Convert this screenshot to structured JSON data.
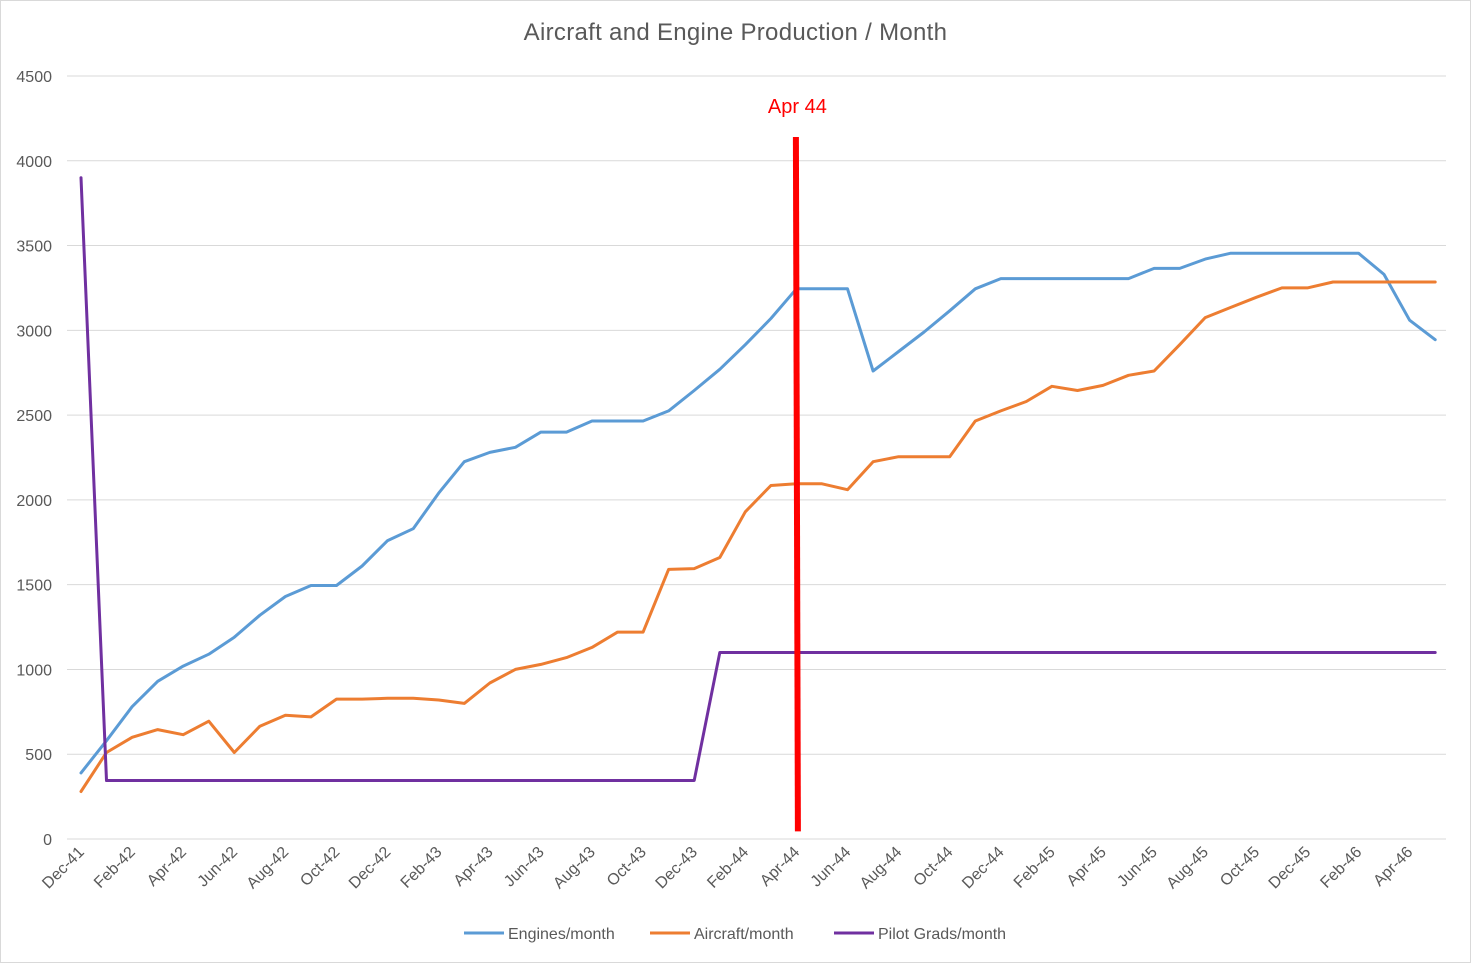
{
  "chart_data": {
    "type": "line",
    "title": "Aircraft and Engine Production / Month",
    "xlabel": "",
    "ylabel": "",
    "ylim": [
      0,
      4500
    ],
    "yticks": [
      0,
      500,
      1000,
      1500,
      2000,
      2500,
      3000,
      3500,
      4000,
      4500
    ],
    "grid": true,
    "legend_position": "bottom",
    "categories": [
      "Dec-41",
      "Jan-42",
      "Feb-42",
      "Mar-42",
      "Apr-42",
      "May-42",
      "Jun-42",
      "Jul-42",
      "Aug-42",
      "Sep-42",
      "Oct-42",
      "Nov-42",
      "Dec-42",
      "Jan-43",
      "Feb-43",
      "Mar-43",
      "Apr-43",
      "May-43",
      "Jun-43",
      "Jul-43",
      "Aug-43",
      "Sep-43",
      "Oct-43",
      "Nov-43",
      "Dec-43",
      "Jan-44",
      "Feb-44",
      "Mar-44",
      "Apr-44",
      "May-44",
      "Jun-44",
      "Jul-44",
      "Aug-44",
      "Sep-44",
      "Oct-44",
      "Nov-44",
      "Dec-44",
      "Jan-45",
      "Feb-45",
      "Mar-45",
      "Apr-45",
      "May-45",
      "Jun-45",
      "Jul-45",
      "Aug-45",
      "Sep-45",
      "Oct-45",
      "Nov-45",
      "Dec-45",
      "Jan-46",
      "Feb-46",
      "Mar-46",
      "Apr-46",
      "May-46"
    ],
    "xtick_labels": [
      "Dec-41",
      "Feb-42",
      "Apr-42",
      "Jun-42",
      "Aug-42",
      "Oct-42",
      "Dec-42",
      "Feb-43",
      "Apr-43",
      "Jun-43",
      "Aug-43",
      "Oct-43",
      "Dec-43",
      "Feb-44",
      "Apr-44",
      "Jun-44",
      "Aug-44",
      "Oct-44",
      "Dec-44",
      "Feb-45",
      "Apr-45",
      "Jun-45",
      "Aug-45",
      "Oct-45",
      "Dec-45",
      "Feb-46",
      "Apr-46"
    ],
    "series": [
      {
        "name": "Engines/month",
        "color": "#5b9bd5",
        "values": [
          390,
          580,
          780,
          930,
          1020,
          1090,
          1190,
          1320,
          1430,
          1495,
          1495,
          1610,
          1760,
          1830,
          2040,
          2225,
          2280,
          2310,
          2400,
          2400,
          2465,
          2465,
          2465,
          2525,
          2645,
          2770,
          2915,
          3070,
          3245,
          3245,
          3245,
          2760,
          2875,
          2990,
          3115,
          3245,
          3305,
          3305,
          3305,
          3305,
          3305,
          3305,
          3365,
          3365,
          3420,
          3455,
          3455,
          3455,
          3455,
          3455,
          3455,
          3330,
          3060,
          2945
        ]
      },
      {
        "name": "Aircraft/month",
        "color": "#ed7d31",
        "values": [
          280,
          510,
          600,
          645,
          615,
          695,
          510,
          665,
          730,
          720,
          825,
          825,
          830,
          830,
          820,
          800,
          920,
          1000,
          1030,
          1070,
          1130,
          1220,
          1220,
          1590,
          1595,
          1660,
          1930,
          2085,
          2095,
          2095,
          2060,
          2225,
          2255,
          2255,
          2255,
          2465,
          2525,
          2580,
          2670,
          2645,
          2675,
          2735,
          2760,
          2915,
          3075,
          3135,
          3195,
          3250,
          3250,
          3285,
          3285,
          3285,
          3285,
          3285
        ]
      },
      {
        "name": "Pilot Grads/month",
        "color": "#7030a0",
        "values": [
          3900,
          345,
          345,
          345,
          345,
          345,
          345,
          345,
          345,
          345,
          345,
          345,
          345,
          345,
          345,
          345,
          345,
          345,
          345,
          345,
          345,
          345,
          345,
          345,
          345,
          1100,
          1100,
          1100,
          1100,
          1100,
          1100,
          1100,
          1100,
          1100,
          1100,
          1100,
          1100,
          1100,
          1100,
          1100,
          1100,
          1100,
          1100,
          1100,
          1100,
          1100,
          1100,
          1100,
          1100,
          1100,
          1100,
          1100,
          1100,
          1100
        ]
      }
    ],
    "annotations": [
      {
        "type": "vertical_line",
        "x": "Apr-44",
        "label": "Apr 44",
        "color": "#ff0000"
      }
    ]
  }
}
